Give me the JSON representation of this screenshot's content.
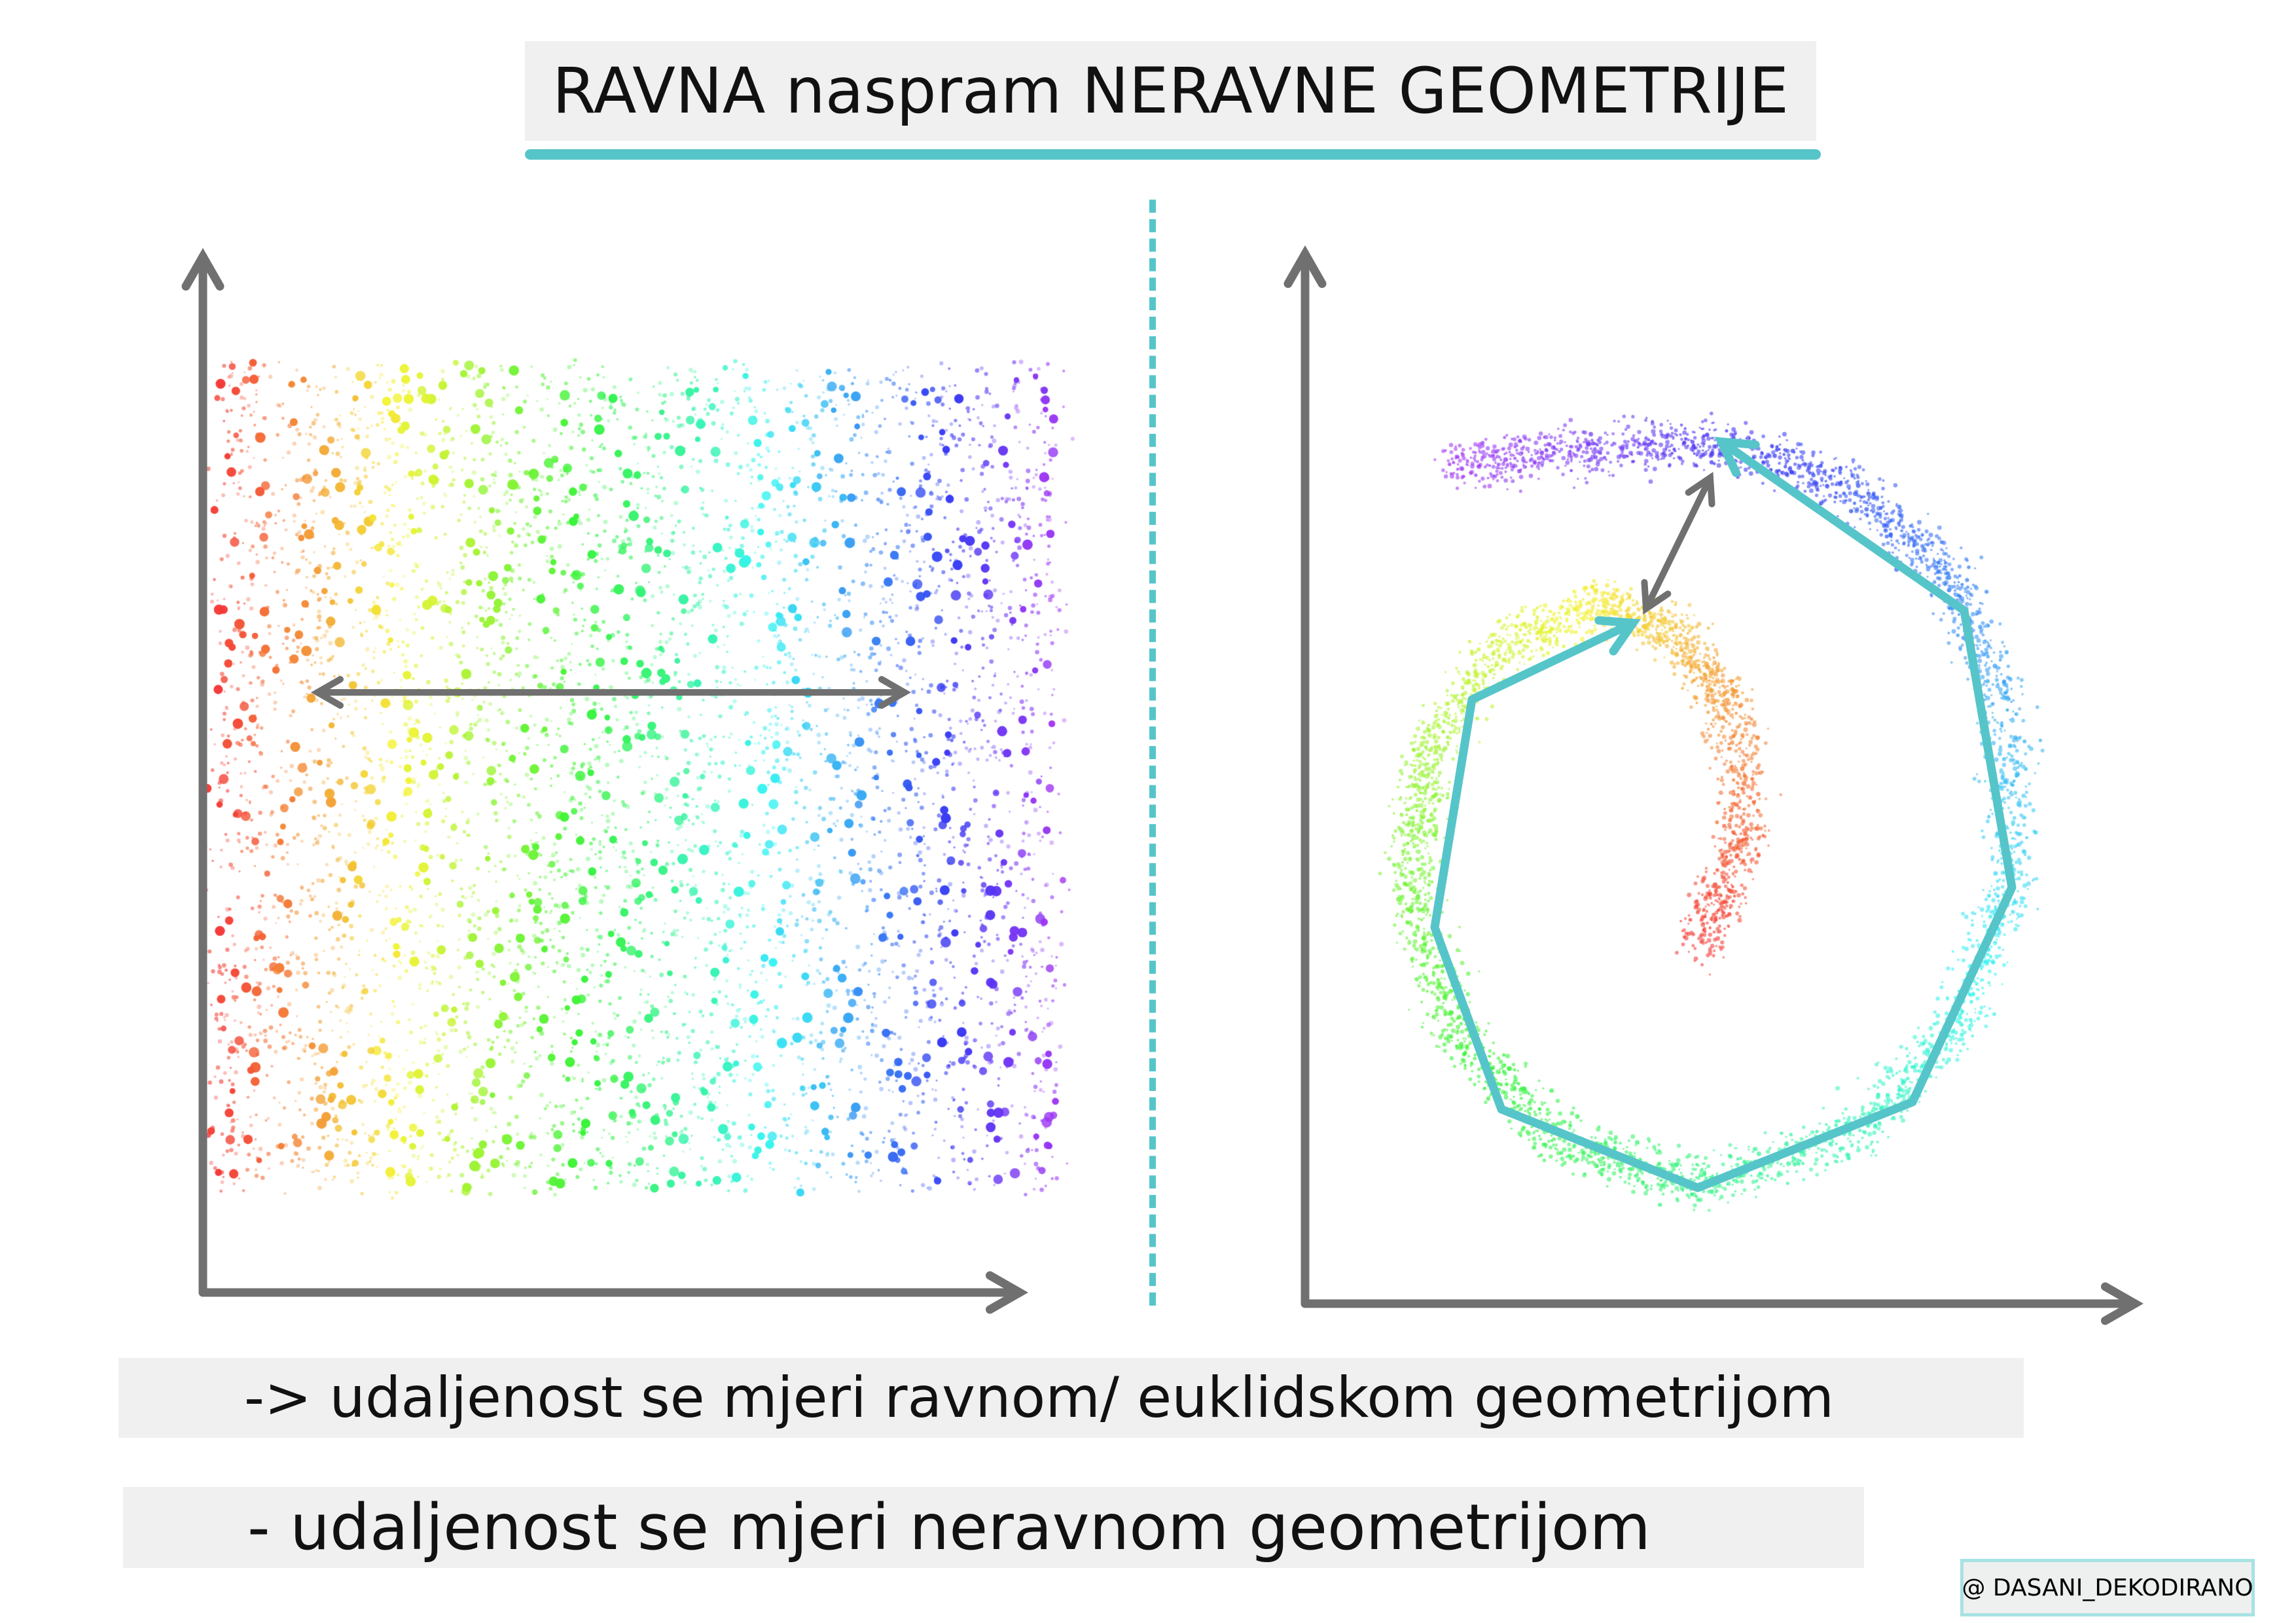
{
  "title": "RAVNA naspram NERAVNE GEOMETRIJE",
  "captions": {
    "flat": "-> udaljenost se mjeri ravnom/ euklidskom geometrijom",
    "curved": "- udaljenost se mjeri neravnom geometrijom"
  },
  "watermark": "@ DASANI_DEKODIRANO",
  "colors": {
    "accent": "#56c5c9",
    "axis": "#707070",
    "box": "#f0f0f0"
  },
  "panels": {
    "left": {
      "shape": "rainbow-rectangle-scatter",
      "arrow": "straight-double-arrow"
    },
    "right": {
      "shape": "rainbow-spiral-scatter",
      "arrow": "short-double-arrow",
      "path": "geodesic-polyline"
    }
  }
}
